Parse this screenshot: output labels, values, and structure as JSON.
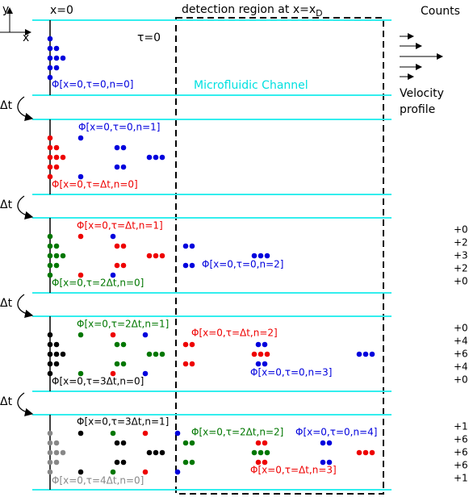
{
  "header": {
    "x0": "x=0",
    "detection": "detection region at x=x",
    "detection_sub": "D",
    "counts": "Counts",
    "tau0": "τ=0",
    "channel": "Microfluidic Channel",
    "velocity": [
      "Velocity",
      "profile"
    ],
    "axis_y": "y",
    "axis_x": "x"
  },
  "steps": [
    "Δt",
    "Δt",
    "Δt",
    "Δt"
  ],
  "labels": [
    {
      "text": "Φ[x=0,τ=0,n=0]",
      "color": "#0000dd"
    },
    {
      "text": "Φ[x=0,τ=0,n=1]",
      "color": "#0000dd"
    },
    {
      "text": "Φ[x=0,τ=Δt,n=0]",
      "color": "#ee0000"
    },
    {
      "text": "Φ[x=0,τ=Δt,n=1]",
      "color": "#ee0000"
    },
    {
      "text": "Φ[x=0,τ=0,n=2]",
      "color": "#0000dd"
    },
    {
      "text": "Φ[x=0,τ=2Δt,n=0]",
      "color": "#007700"
    },
    {
      "text": "Φ[x=0,τ=2Δt,n=1]",
      "color": "#007700"
    },
    {
      "text": "Φ[x=0,τ=Δt,n=2]",
      "color": "#ee0000"
    },
    {
      "text": "Φ[x=0,τ=0,n=3]",
      "color": "#0000dd"
    },
    {
      "text": "Φ[x=0,τ=3Δt,n=0]",
      "color": "#000000"
    },
    {
      "text": "Φ[x=0,τ=3Δt,n=1]",
      "color": "#000000"
    },
    {
      "text": "Φ[x=0,τ=2Δt,n=2]",
      "color": "#007700"
    },
    {
      "text": "Φ[x=0,τ=0,n=4]",
      "color": "#0000dd"
    },
    {
      "text": "Φ[x=0,τ=Δt,n=3]",
      "color": "#ee0000"
    },
    {
      "text": "Φ[x=0,τ=4Δt,n=0]",
      "color": "#888888"
    }
  ],
  "counts": [
    [
      "+0",
      "+2",
      "+3",
      "+2",
      "+0"
    ],
    [
      "+0",
      "+4",
      "+6",
      "+4",
      "+0"
    ],
    [
      "+1",
      "+6",
      "+6",
      "+6",
      "+1"
    ]
  ]
}
